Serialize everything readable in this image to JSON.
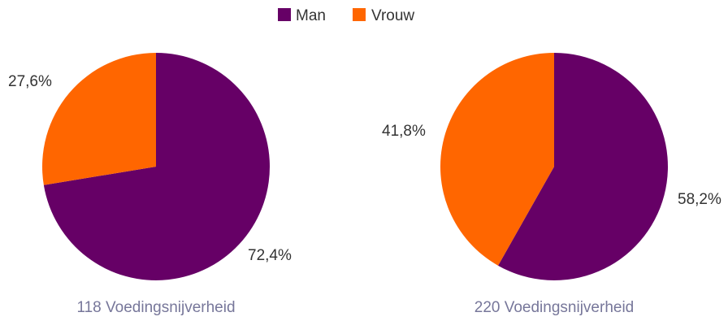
{
  "colors": {
    "man": "#660066",
    "vrouw": "#ff6600"
  },
  "legend": [
    {
      "label": "Man",
      "color": "#660066"
    },
    {
      "label": "Vrouw",
      "color": "#ff6600"
    }
  ],
  "chart_data": [
    {
      "type": "pie",
      "title": "118 Voedingsnijverheid",
      "categories": [
        "Man",
        "Vrouw"
      ],
      "values": [
        72.4,
        27.6
      ],
      "labels": [
        "72,4%",
        "27,6%"
      ],
      "legend_position": "top"
    },
    {
      "type": "pie",
      "title": "220 Voedingsnijverheid",
      "categories": [
        "Man",
        "Vrouw"
      ],
      "values": [
        58.2,
        41.8
      ],
      "labels": [
        "58,2%",
        "41,8%"
      ],
      "legend_position": "top"
    }
  ]
}
